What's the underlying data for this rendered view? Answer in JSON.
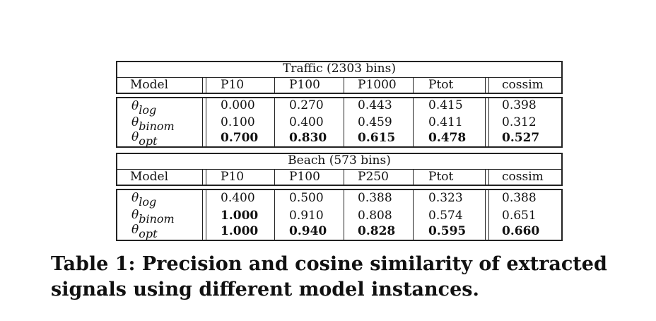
{
  "tables": [
    {
      "title": "Traffic (2303 bins)",
      "headers": [
        "Model",
        "P10",
        "P100",
        "P1000",
        "Ptot",
        "cossim"
      ],
      "rows": [
        {
          "model_base": "θ",
          "model_sub": "log",
          "values": [
            "0.000",
            "0.270",
            "0.443",
            "0.415",
            "0.398"
          ],
          "bold": [
            false,
            false,
            false,
            false,
            false
          ]
        },
        {
          "model_base": "θ",
          "model_sub": "binom",
          "values": [
            "0.100",
            "0.400",
            "0.459",
            "0.411",
            "0.312"
          ],
          "bold": [
            false,
            false,
            false,
            false,
            false
          ]
        },
        {
          "model_base": "θ",
          "model_sub": "opt",
          "values": [
            "0.700",
            "0.830",
            "0.615",
            "0.478",
            "0.527"
          ],
          "bold": [
            true,
            true,
            true,
            true,
            true
          ]
        }
      ]
    },
    {
      "title": "Beach (573 bins)",
      "headers": [
        "Model",
        "P10",
        "P100",
        "P250",
        "Ptot",
        "cossim"
      ],
      "rows": [
        {
          "model_base": "θ",
          "model_sub": "log",
          "values": [
            "0.400",
            "0.500",
            "0.388",
            "0.323",
            "0.388"
          ],
          "bold": [
            false,
            false,
            false,
            false,
            false
          ]
        },
        {
          "model_base": "θ",
          "model_sub": "binom",
          "values": [
            "1.000",
            "0.910",
            "0.808",
            "0.574",
            "0.651"
          ],
          "bold": [
            true,
            false,
            false,
            false,
            false
          ]
        },
        {
          "model_base": "θ",
          "model_sub": "opt",
          "values": [
            "1.000",
            "0.940",
            "0.828",
            "0.595",
            "0.660"
          ],
          "bold": [
            true,
            true,
            true,
            true,
            true
          ]
        }
      ]
    }
  ],
  "caption": "Table 1: Precision and cosine similarity of extracted signals using different model instances."
}
